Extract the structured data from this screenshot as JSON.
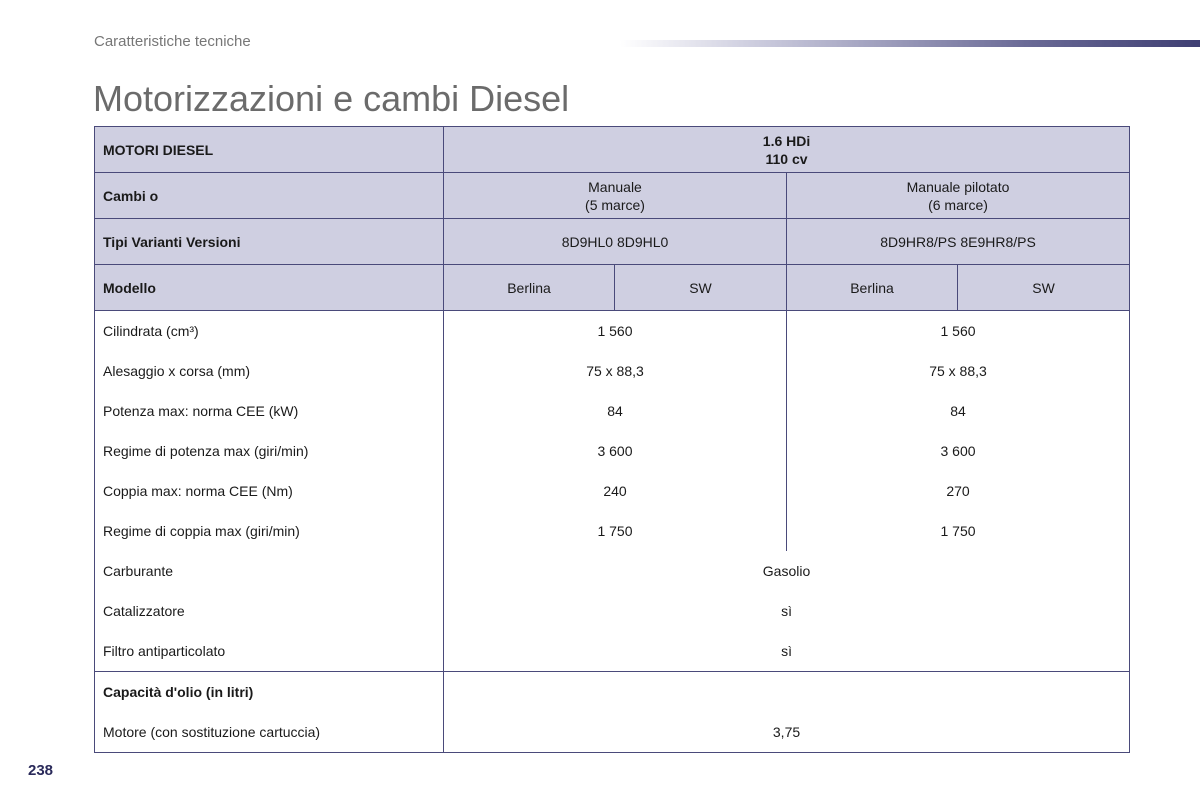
{
  "header": {
    "section_label": "Caratteristiche tecniche",
    "title": "Motorizzazioni e cambi Diesel"
  },
  "table": {
    "engine_row": {
      "label": "MOTORI DIESEL",
      "engine_line1": "1.6 HDi",
      "engine_line2": "110 cv"
    },
    "gearbox_row": {
      "label": "Cambi o",
      "col1_line1": "Manuale",
      "col1_line2": "(5 marce)",
      "col2_line1": "Manuale pilotato",
      "col2_line2": "(6 marce)"
    },
    "variants_row": {
      "label": "Tipi Varianti Versioni",
      "col1": "8D9HL0 8D9HL0",
      "col2": "8D9HR8/PS 8E9HR8/PS"
    },
    "model_row": {
      "label": "Modello",
      "cells": [
        "Berlina",
        "SW",
        "Berlina",
        "SW"
      ]
    },
    "spec_rows": [
      {
        "label": "Cilindrata (cm³)",
        "col1": "1 560",
        "col2": "1 560"
      },
      {
        "label": "Alesaggio x corsa (mm)",
        "col1": "75 x 88,3",
        "col2": "75 x 88,3"
      },
      {
        "label": "Potenza max: norma CEE (kW)",
        "col1": "84",
        "col2": "84"
      },
      {
        "label": "Regime di potenza max (giri/min)",
        "col1": "3 600",
        "col2": "3 600"
      },
      {
        "label": "Coppia max: norma CEE (Nm)",
        "col1": "240",
        "col2": "270"
      },
      {
        "label": "Regime di coppia max (giri/min)",
        "col1": "1 750",
        "col2": "1 750"
      }
    ],
    "shared_rows": [
      {
        "label": "Carburante",
        "value": "Gasolio"
      },
      {
        "label": "Catalizzatore",
        "value": "sì"
      },
      {
        "label": "Filtro antiparticolato",
        "value": "sì"
      }
    ],
    "oil_section": {
      "heading": "Capacità d'olio (in litri)",
      "label": "Motore (con sostituzione cartuccia)",
      "value": "3,75"
    }
  },
  "footer": {
    "page_number": "238"
  }
}
